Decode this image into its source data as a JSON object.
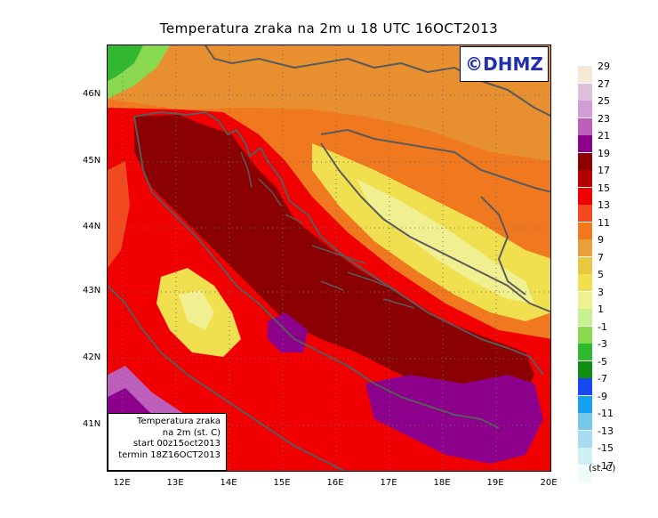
{
  "title": "Temperatura zraka na 2m u 18 UTC 16OCT2013",
  "logo_text": "©DHMZ",
  "info_box": {
    "line1": "Temperatura zraka",
    "line2": "na 2m (st. C)",
    "line3": "start 00z15oct2013",
    "line4": "termin 18Z16OCT2013"
  },
  "latitude_labels": [
    "46N",
    "45N",
    "44N",
    "43N",
    "42N",
    "41N"
  ],
  "longitude_labels": [
    "12E",
    "13E",
    "14E",
    "15E",
    "16E",
    "17E",
    "18E",
    "19E",
    "20E"
  ],
  "legend": {
    "unit": "(st. C)",
    "boundaries": [
      "29",
      "27",
      "25",
      "23",
      "21",
      "19",
      "17",
      "15",
      "13",
      "11",
      "9",
      "7",
      "5",
      "3",
      "1",
      "-1",
      "-3",
      "-5",
      "-7",
      "-9",
      "-11",
      "-13",
      "-15",
      "-17"
    ],
    "colors": [
      "#f7e8d8",
      "#dcc0dc",
      "#d49cd4",
      "#bb5fbb",
      "#8c008c",
      "#8b0000",
      "#b40000",
      "#f00000",
      "#f24a1e",
      "#f0781e",
      "#e8a03c",
      "#e8c840",
      "#f0e050",
      "#f0f090",
      "#c8f090",
      "#88d850",
      "#30b830",
      "#108c10",
      "#1848f0",
      "#18a0f0",
      "#78c8e8",
      "#a8dcf0",
      "#d0f0f8",
      "#eefcfc"
    ]
  }
}
